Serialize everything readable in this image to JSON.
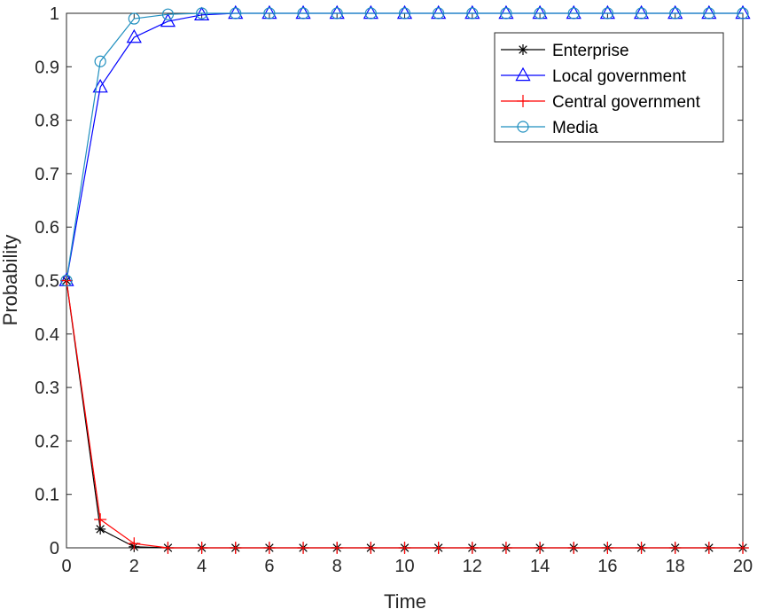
{
  "chart_data": {
    "type": "line",
    "xlabel": "Time",
    "ylabel": "Probability",
    "xlim": [
      0,
      20
    ],
    "ylim": [
      0,
      1
    ],
    "xticks": [
      0,
      2,
      4,
      6,
      8,
      10,
      12,
      14,
      16,
      18,
      20
    ],
    "yticks": [
      0,
      0.1,
      0.2,
      0.3,
      0.4,
      0.5,
      0.6,
      0.7,
      0.8,
      0.9,
      1
    ],
    "x": [
      0,
      1,
      2,
      3,
      4,
      5,
      6,
      7,
      8,
      9,
      10,
      11,
      12,
      13,
      14,
      15,
      16,
      17,
      18,
      19,
      20
    ],
    "grid": false,
    "legend_position": "top-right",
    "series": [
      {
        "name": "Enterprise",
        "color": "#000000",
        "marker": "asterisk",
        "values": [
          0.5,
          0.035,
          0.002,
          0,
          0,
          0,
          0,
          0,
          0,
          0,
          0,
          0,
          0,
          0,
          0,
          0,
          0,
          0,
          0,
          0,
          0
        ]
      },
      {
        "name": "Local government",
        "color": "#0000ff",
        "marker": "triangle",
        "values": [
          0.5,
          0.862,
          0.955,
          0.985,
          0.997,
          1,
          1,
          1,
          1,
          1,
          1,
          1,
          1,
          1,
          1,
          1,
          1,
          1,
          1,
          1,
          1
        ]
      },
      {
        "name": "Central government",
        "color": "#ff0000",
        "marker": "plus",
        "values": [
          0.5,
          0.053,
          0.008,
          0,
          0,
          0,
          0,
          0,
          0,
          0,
          0,
          0,
          0,
          0,
          0,
          0,
          0,
          0,
          0,
          0,
          0
        ]
      },
      {
        "name": "Media",
        "color": "#1f8fbf",
        "marker": "circle",
        "values": [
          0.5,
          0.91,
          0.99,
          0.998,
          1,
          1,
          1,
          1,
          1,
          1,
          1,
          1,
          1,
          1,
          1,
          1,
          1,
          1,
          1,
          1,
          1
        ]
      }
    ]
  }
}
